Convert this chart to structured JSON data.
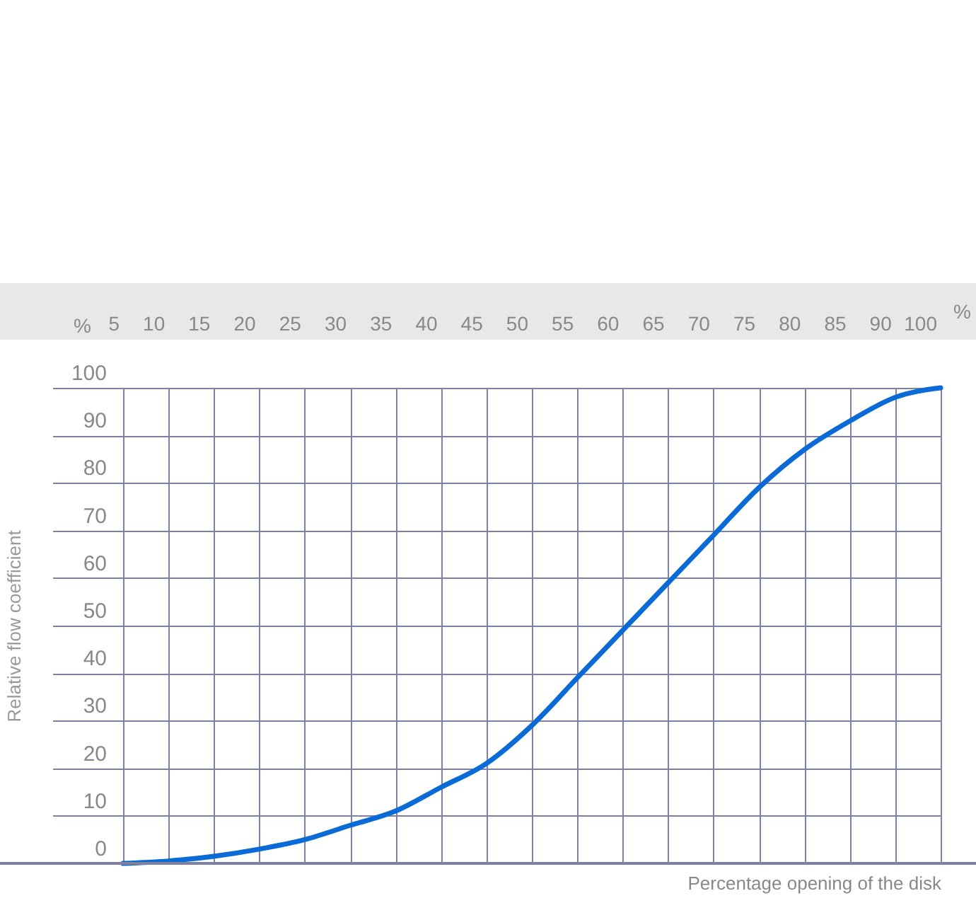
{
  "chart_data": {
    "type": "line",
    "xlabel": "Percentage opening of the disk",
    "ylabel": "Relative flow coefficient",
    "categories": [
      "5",
      "10",
      "15",
      "20",
      "25",
      "30",
      "35",
      "40",
      "45",
      "50",
      "55",
      "60",
      "65",
      "70",
      "75",
      "80",
      "85",
      "90",
      "100"
    ],
    "values": [
      0,
      0.5,
      1.5,
      3,
      5,
      8,
      11,
      16,
      21,
      29,
      39,
      49,
      59,
      69,
      79,
      87,
      93,
      98,
      100
    ],
    "color": "#0a6ad6",
    "ylim": [
      0,
      100
    ],
    "yticks": [
      0,
      10,
      20,
      30,
      40,
      50,
      60,
      70,
      80,
      90,
      100
    ],
    "grid": true,
    "annotations": [
      "%",
      "%"
    ]
  }
}
